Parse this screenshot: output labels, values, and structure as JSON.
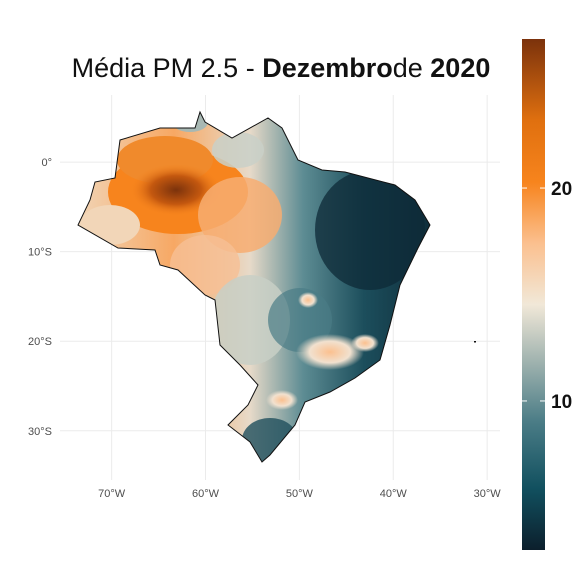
{
  "title": {
    "prefix": "Média PM 2.5 - ",
    "month": "Dezembro",
    "connector": "de ",
    "year": "2020"
  },
  "map": {
    "type": "choropleth",
    "region": "Brazil",
    "lat_ticks": [
      "0°",
      "10°S",
      "20°S",
      "30°S"
    ],
    "lat_values": [
      0,
      -10,
      -20,
      -30
    ],
    "lon_ticks": [
      "70°W",
      "60°W",
      "50°W",
      "40°W",
      "30°W"
    ],
    "lon_values": [
      -70,
      -60,
      -50,
      -40,
      -30
    ],
    "lon_range": [
      -75.5,
      -26.5
    ],
    "lat_range": [
      -35.5,
      7.5
    ],
    "grid": true
  },
  "legend": {
    "labels": [
      "20",
      "10"
    ],
    "label_values": [
      20,
      10
    ],
    "range": [
      3,
      27
    ],
    "placement": "right",
    "colors": [
      "#0c1f2c",
      "#11505f",
      "#4a7c86",
      "#a8b8b3",
      "#f1e8d8",
      "#fbc08f",
      "#f7841d",
      "#e0700f",
      "#7b320c"
    ]
  },
  "regions": [
    {
      "name": "amazon-core",
      "value": 26
    },
    {
      "name": "amazon-west",
      "value": 22
    },
    {
      "name": "amazon-north",
      "value": 21
    },
    {
      "name": "para-south",
      "value": 18
    },
    {
      "name": "acre",
      "value": 16
    },
    {
      "name": "rondonia",
      "value": 17
    },
    {
      "name": "mato-grosso",
      "value": 15
    },
    {
      "name": "amapa",
      "value": 13
    },
    {
      "name": "roraima",
      "value": 13
    },
    {
      "name": "goias",
      "value": 9
    },
    {
      "name": "minas-gerais",
      "value": 8
    },
    {
      "name": "minas-hotspot",
      "value": 19
    },
    {
      "name": "sao-paulo-hotspot",
      "value": 17
    },
    {
      "name": "northeast",
      "value": 5
    },
    {
      "name": "southeast-coast",
      "value": 7
    },
    {
      "name": "south",
      "value": 6
    }
  ]
}
